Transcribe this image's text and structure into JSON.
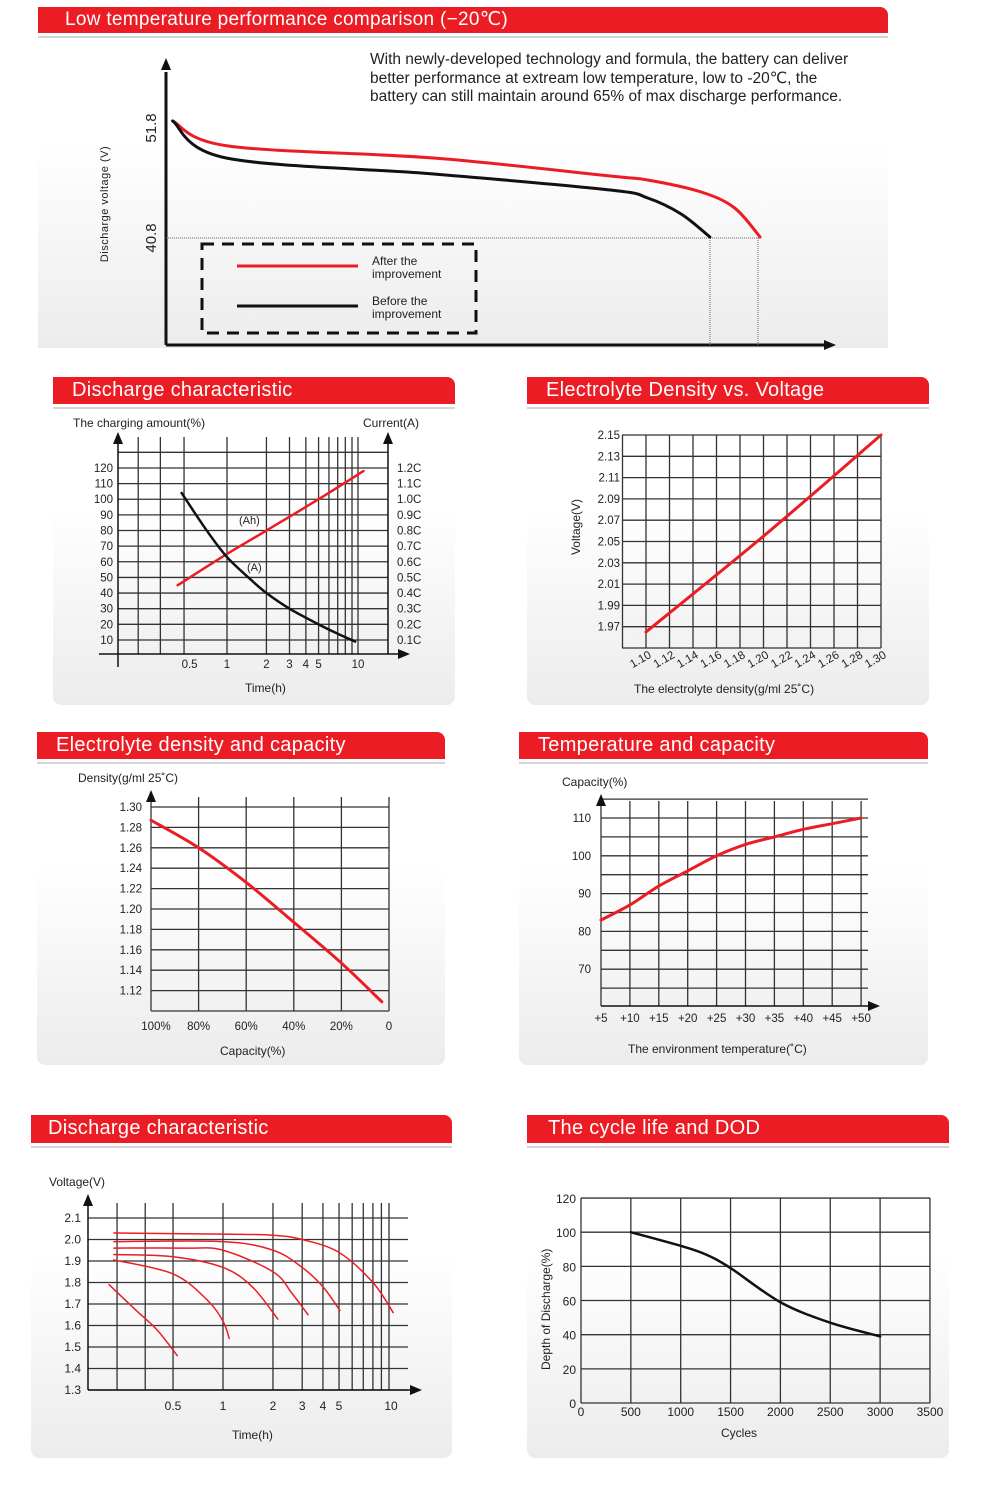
{
  "page": {
    "accent": "#ec1c24",
    "grid_color": "#333333"
  },
  "chart_data": [
    {
      "type": "line",
      "title": "Low temperature performance comparison (−20℃)",
      "description": "With newly-developed technology and formula, the battery can deliver better performance at extream low temperature, low to -20℃, the battery can still maintain around 65% of max discharge performance.",
      "ylabel": "Discharge voltage (V)",
      "xlabel": "",
      "yticks": [
        "51.8",
        "40.8"
      ],
      "cutoff_voltage": 40.8,
      "legend": {
        "placement": "bottom-left",
        "style": "dashed box"
      },
      "series": [
        {
          "name": "After the improvement",
          "color": "#ec1c24",
          "points": [
            [
              0.01,
              52.5
            ],
            [
              0.093,
              50.0
            ],
            [
              0.4,
              48.8
            ],
            [
              0.664,
              47.0
            ],
            [
              0.72,
              46.6
            ],
            [
              0.8,
              45.4
            ],
            [
              0.85,
              43.8
            ],
            [
              0.888,
              40.9
            ]
          ]
        },
        {
          "name": "Before the improvement",
          "color": "#111111",
          "points": [
            [
              0.01,
              52.5
            ],
            [
              0.09,
              48.8
            ],
            [
              0.4,
              47.2
            ],
            [
              0.664,
              45.6
            ],
            [
              0.72,
              44.8
            ],
            [
              0.77,
              43.2
            ],
            [
              0.813,
              40.9
            ]
          ]
        }
      ]
    },
    {
      "type": "line",
      "title": "Discharge characteristic",
      "ylabel": "The charging amount(%)",
      "y2label": "Current(A)",
      "xlabel": "Time(h)",
      "xscale": "log",
      "xticks": [
        "0.5",
        "1",
        "2",
        "3",
        "4",
        "5",
        "10"
      ],
      "yticks": [
        "120",
        "110",
        "100",
        "90",
        "80",
        "70",
        "60",
        "50",
        "40",
        "30",
        "20",
        "10"
      ],
      "y2ticks": [
        "1.2C",
        "1.1C",
        "1.0C",
        "0.9C",
        "0.8C",
        "0.7C",
        "0.6C",
        "0.5C",
        "0.4C",
        "0.3C",
        "0.2C",
        "0.1C"
      ],
      "annotations": [
        "(Ah)",
        "(A)"
      ],
      "series": [
        {
          "name": "(Ah)",
          "axis": "left",
          "color": "#ec1c24",
          "points": [
            [
              0.42,
              45
            ],
            [
              1,
              65
            ],
            [
              2,
              80
            ],
            [
              5,
              100
            ],
            [
              11,
              118
            ]
          ]
        },
        {
          "name": "(A)",
          "axis": "right",
          "color": "#111111",
          "points": [
            [
              0.45,
              1.04
            ],
            [
              0.7,
              0.8
            ],
            [
              1,
              0.63
            ],
            [
              1.5,
              0.49
            ],
            [
              2,
              0.4
            ],
            [
              3,
              0.3
            ],
            [
              5,
              0.2
            ],
            [
              7,
              0.14
            ],
            [
              9.5,
              0.09
            ]
          ]
        }
      ]
    },
    {
      "type": "line",
      "title": "Electrolyte Density vs. Voltage",
      "ylabel": "Voltage(V)",
      "xlabel": "The electrolyte density(g/ml 25˚C)",
      "xticks": [
        "1.10",
        "1.12",
        "1.14",
        "1.16",
        "1.18",
        "1.20",
        "1.22",
        "1.24",
        "1.26",
        "1.28",
        "1.30"
      ],
      "yticks": [
        "2.15",
        "2.13",
        "2.11",
        "2.09",
        "2.07",
        "2.05",
        "2.03",
        "2.01",
        "1.99",
        "1.97"
      ],
      "xlim": [
        1.08,
        1.3
      ],
      "ylim": [
        1.95,
        2.15
      ],
      "series": [
        {
          "color": "#ec1c24",
          "points": [
            [
              1.1,
              1.965
            ],
            [
              1.2,
              2.055
            ],
            [
              1.3,
              2.15
            ]
          ]
        }
      ]
    },
    {
      "type": "line",
      "title": "Electrolyte density and capacity",
      "ylabel": "Density(g/ml 25˚C)",
      "xlabel": "Capacity(%)",
      "xticks": [
        "100%",
        "80%",
        "60%",
        "40%",
        "20%",
        "0"
      ],
      "yticks": [
        "1.30",
        "1.28",
        "1.26",
        "1.24",
        "1.22",
        "1.20",
        "1.18",
        "1.16",
        "1.14",
        "1.12"
      ],
      "xlim": [
        100,
        0
      ],
      "ylim": [
        1.1,
        1.3
      ],
      "series": [
        {
          "color": "#ec1c24",
          "points": [
            [
              100,
              1.287
            ],
            [
              80,
              1.26
            ],
            [
              60,
              1.226
            ],
            [
              40,
              1.187
            ],
            [
              20,
              1.147
            ],
            [
              3,
              1.109
            ]
          ]
        }
      ]
    },
    {
      "type": "line",
      "title": "Temperature and capacity",
      "ylabel": "Capacity(%)",
      "xlabel": "The environment temperature(˚C)",
      "xticks": [
        "+5",
        "+10",
        "+15",
        "+20",
        "+25",
        "+30",
        "+35",
        "+40",
        "+45",
        "+50"
      ],
      "yticks": [
        "110",
        "100",
        "90",
        "80",
        "70"
      ],
      "xlim": [
        5,
        50
      ],
      "ylim": [
        60,
        115
      ],
      "series": [
        {
          "color": "#ec1c24",
          "points": [
            [
              5,
              83
            ],
            [
              10,
              87
            ],
            [
              15,
              92
            ],
            [
              20,
              96
            ],
            [
              25,
              100
            ],
            [
              30,
              103
            ],
            [
              35,
              105
            ],
            [
              40,
              107
            ],
            [
              45,
              108.5
            ],
            [
              50,
              110
            ]
          ]
        }
      ]
    },
    {
      "type": "line",
      "title": "Discharge characteristic",
      "ylabel": "Voltage(V)",
      "xlabel": "Time(h)",
      "xscale": "log",
      "xticks": [
        "0.5",
        "1",
        "2",
        "3",
        "4",
        "5",
        "10"
      ],
      "yticks": [
        "2.1",
        "2.0",
        "1.9",
        "1.8",
        "1.7",
        "1.6",
        "1.5",
        "1.4",
        "1.3"
      ],
      "ylim": [
        1.3,
        2.1
      ],
      "series": [
        {
          "color": "#ec1c24",
          "points": [
            [
              0.22,
              2.03
            ],
            [
              1,
              2.025
            ],
            [
              2,
              2.02
            ],
            [
              3,
              2.0
            ],
            [
              5,
              1.94
            ],
            [
              8,
              1.8
            ],
            [
              10.6,
              1.66
            ]
          ]
        },
        {
          "color": "#ec1c24",
          "points": [
            [
              0.22,
              1.99
            ],
            [
              1,
              1.99
            ],
            [
              2,
              1.95
            ],
            [
              3,
              1.87
            ],
            [
              4,
              1.78
            ],
            [
              5.06,
              1.67
            ]
          ]
        },
        {
          "color": "#ec1c24",
          "points": [
            [
              0.22,
              1.96
            ],
            [
              0.6,
              1.96
            ],
            [
              1,
              1.95
            ],
            [
              2,
              1.85
            ],
            [
              2.6,
              1.75
            ],
            [
              3.25,
              1.65
            ]
          ]
        },
        {
          "color": "#ec1c24",
          "points": [
            [
              0.22,
              1.93
            ],
            [
              0.5,
              1.92
            ],
            [
              1,
              1.87
            ],
            [
              1.5,
              1.78
            ],
            [
              2.14,
              1.63
            ]
          ]
        },
        {
          "color": "#ec1c24",
          "points": [
            [
              0.22,
              1.905
            ],
            [
              0.5,
              1.84
            ],
            [
              0.8,
              1.72
            ],
            [
              1,
              1.62
            ],
            [
              1.09,
              1.54
            ]
          ]
        },
        {
          "color": "#ec1c24",
          "points": [
            [
              0.206,
              1.79
            ],
            [
              0.3,
              1.67
            ],
            [
              0.4,
              1.58
            ],
            [
              0.53,
              1.46
            ]
          ]
        }
      ]
    },
    {
      "type": "line",
      "title": "The cycle life and DOD",
      "ylabel": "Depth of Discharge(%)",
      "xlabel": "Cycles",
      "xticks": [
        "0",
        "500",
        "1000",
        "1500",
        "2000",
        "2500",
        "3000",
        "3500"
      ],
      "yticks": [
        "120",
        "100",
        "80",
        "60",
        "40",
        "20",
        "0"
      ],
      "xlim": [
        0,
        3500
      ],
      "ylim": [
        0,
        120
      ],
      "series": [
        {
          "color": "#111111",
          "points": [
            [
              500,
              100
            ],
            [
              1000,
              92
            ],
            [
              1250,
              87
            ],
            [
              1500,
              79
            ],
            [
              2000,
              59
            ],
            [
              2500,
              47
            ],
            [
              3000,
              39
            ]
          ]
        }
      ]
    }
  ]
}
